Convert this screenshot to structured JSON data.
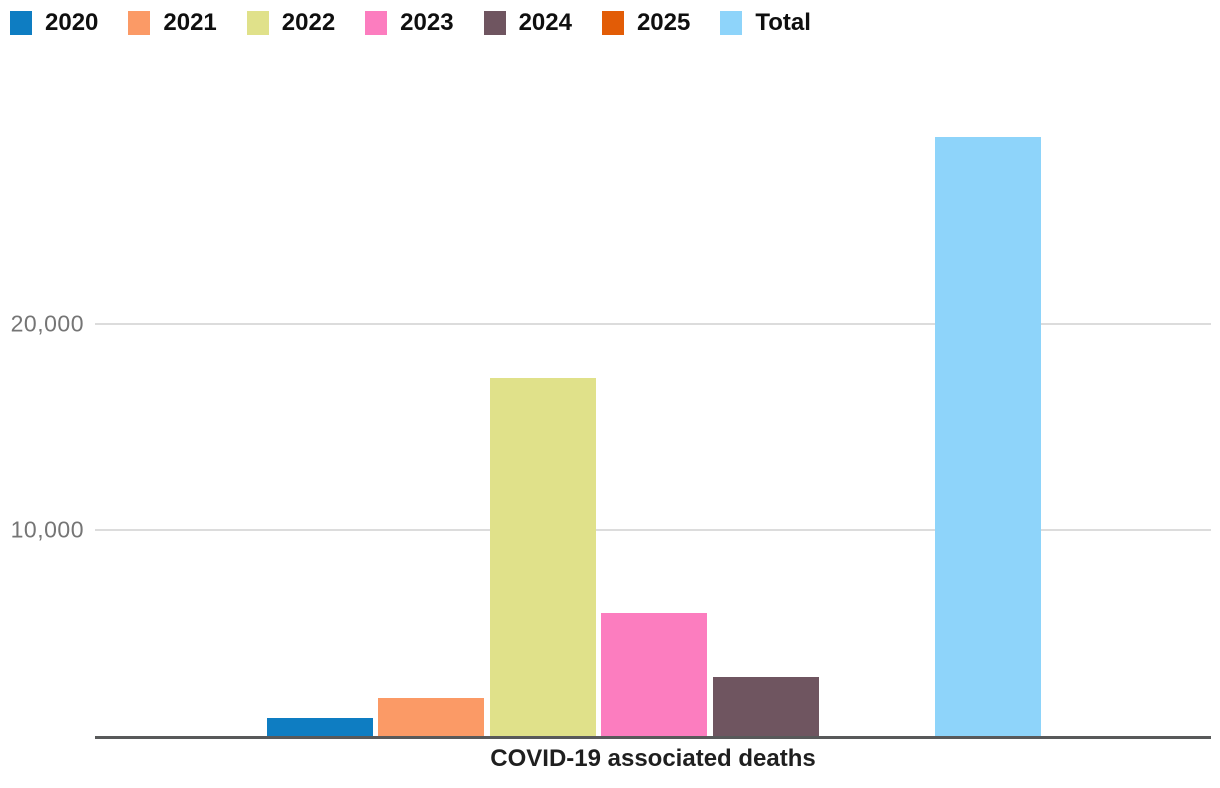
{
  "chart_data": {
    "type": "bar",
    "title": "",
    "xlabel": "COVID-19 associated deaths",
    "ylabel": "",
    "categories": [
      "2020",
      "2021",
      "2022",
      "2023",
      "2024",
      "2025",
      "Total"
    ],
    "values": [
      870,
      1850,
      17400,
      5950,
      2870,
      0,
      29100
    ],
    "colors": [
      "#0e7dc2",
      "#fb9a66",
      "#e0e18a",
      "#fc7dbf",
      "#6f5560",
      "#e25c06",
      "#8ed4fa"
    ],
    "ylim": [
      0,
      30000
    ],
    "yticks": [
      {
        "value": 10000,
        "label": "10,000"
      },
      {
        "value": 20000,
        "label": "20,000"
      }
    ],
    "grid": true,
    "legend_position": "top"
  },
  "colors": {
    "background": "#ffffff",
    "gridline": "#dcdcdc",
    "axis_line": "#58595a",
    "tick_label": "#757575",
    "legend_text": "#0f0f0f",
    "title_text": "#1f1f1f"
  }
}
